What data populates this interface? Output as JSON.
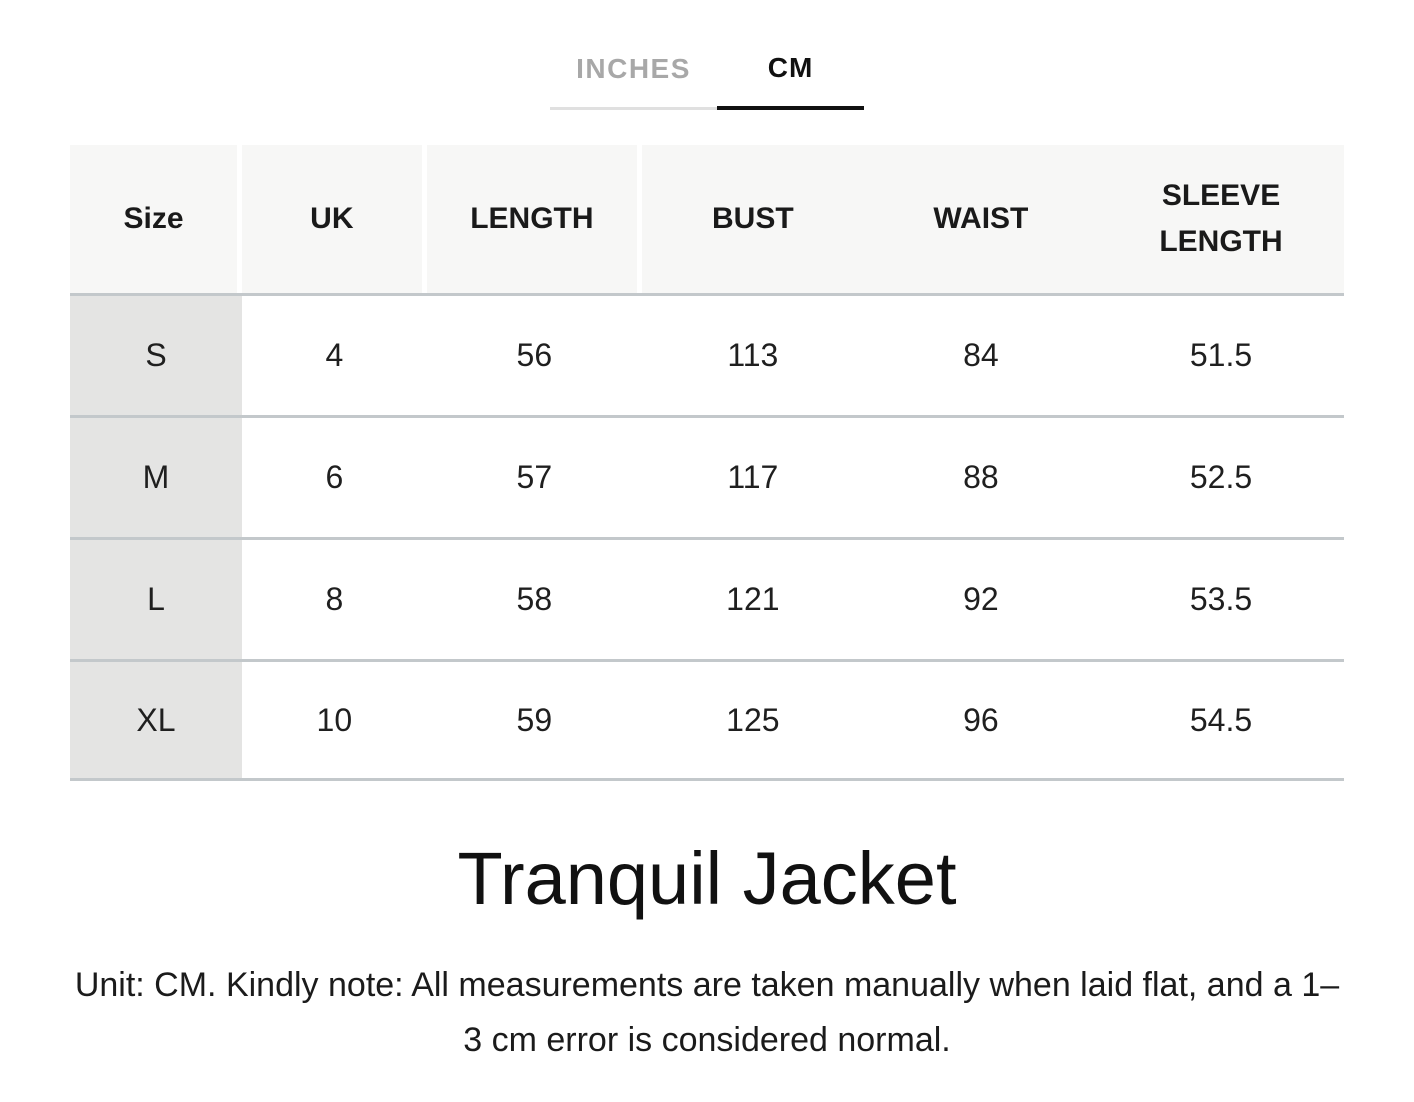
{
  "unit_tabs": {
    "inches_label": "INCHES",
    "cm_label": "CM",
    "active_tab": "CM"
  },
  "size_table": {
    "headers": [
      "Size",
      "UK",
      "LENGTH",
      "BUST",
      "WAIST",
      "SLEEVE LENGTH"
    ],
    "rows": [
      {
        "size": "S",
        "uk": "4",
        "length": "56",
        "bust": "113",
        "waist": "84",
        "sleeve_length": "51.5"
      },
      {
        "size": "M",
        "uk": "6",
        "length": "57",
        "bust": "117",
        "waist": "88",
        "sleeve_length": "52.5"
      },
      {
        "size": "L",
        "uk": "8",
        "length": "58",
        "bust": "121",
        "waist": "92",
        "sleeve_length": "53.5"
      },
      {
        "size": "XL",
        "uk": "10",
        "length": "59",
        "bust": "125",
        "waist": "96",
        "sleeve_length": "54.5"
      }
    ]
  },
  "product": {
    "title": "Tranquil Jacket",
    "note": "Unit: CM. Kindly note: All measurements are taken manually when laid flat, and a 1–3 cm error is considered normal."
  },
  "colors": {
    "header_bg": "#f7f7f6",
    "size_column_bg": "#e4e4e3",
    "row_border": "#c3c8cb",
    "active_tab_text": "#111111",
    "active_tab_underline": "#111111",
    "inactive_tab_text": "#a8a8a8",
    "inactive_tab_underline": "#e0e0e0"
  }
}
